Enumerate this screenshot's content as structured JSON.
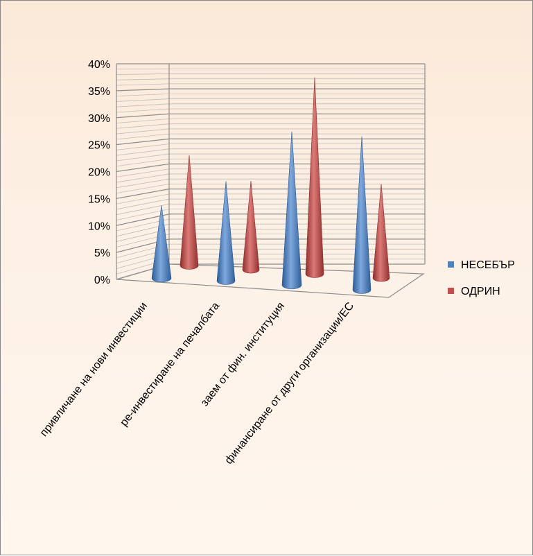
{
  "chart_data": {
    "type": "bar",
    "style": "3d-cone",
    "categories": [
      "привличане  на нови инвестиции",
      "ре-инвестиране на печалбата",
      "заем от фин. институция",
      "финансиране от други организации/ЕС"
    ],
    "series": [
      {
        "name": "НЕСЕБЪР",
        "values": [
          15,
          20,
          30,
          30
        ],
        "color": "#4f81bd"
      },
      {
        "name": "ОДРИН",
        "values": [
          22,
          18,
          38,
          19
        ],
        "color": "#c0504d"
      }
    ],
    "y_ticks": [
      "0%",
      "5%",
      "10%",
      "15%",
      "20%",
      "25%",
      "30%",
      "35%",
      "40%"
    ],
    "ylim": [
      0,
      40
    ],
    "grid": true,
    "legend_position": "right",
    "title": "",
    "xlabel": "",
    "ylabel": ""
  }
}
